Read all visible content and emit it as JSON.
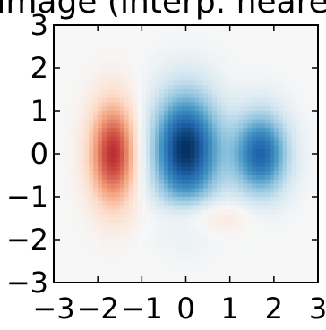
{
  "chart_data": {
    "type": "heatmap",
    "title": "image (interp. nearest)",
    "xlabel": "",
    "ylabel": "",
    "xlim": [
      -3,
      3
    ],
    "ylim": [
      -3,
      3
    ],
    "xticks": [
      "−3",
      "−2",
      "−1",
      "0",
      "1",
      "2",
      "3"
    ],
    "yticks": [
      "−3",
      "−2",
      "−1",
      "0",
      "1",
      "2",
      "3"
    ],
    "grid": false,
    "colormap": "RdBu_r",
    "color_range": [
      -1,
      1
    ],
    "features": [
      {
        "x": -1.65,
        "y": 0.0,
        "sx": 0.38,
        "sy": 0.85,
        "value": 0.75
      },
      {
        "x": 0.0,
        "y": 0.1,
        "sx": 0.55,
        "sy": 0.95,
        "value": -1.0
      },
      {
        "x": 1.7,
        "y": 0.0,
        "sx": 0.45,
        "sy": 0.7,
        "value": -0.8
      },
      {
        "x": 0.4,
        "y": -1.45,
        "sx": 0.75,
        "sy": 0.28,
        "value": 0.2
      }
    ]
  },
  "colors": {
    "cmap_stops": [
      "#053061",
      "#2166ac",
      "#4393c3",
      "#92c5de",
      "#d1e5f0",
      "#f7f7f7",
      "#fddbc7",
      "#f4a582",
      "#d6604d",
      "#b2182b",
      "#67001f"
    ]
  }
}
